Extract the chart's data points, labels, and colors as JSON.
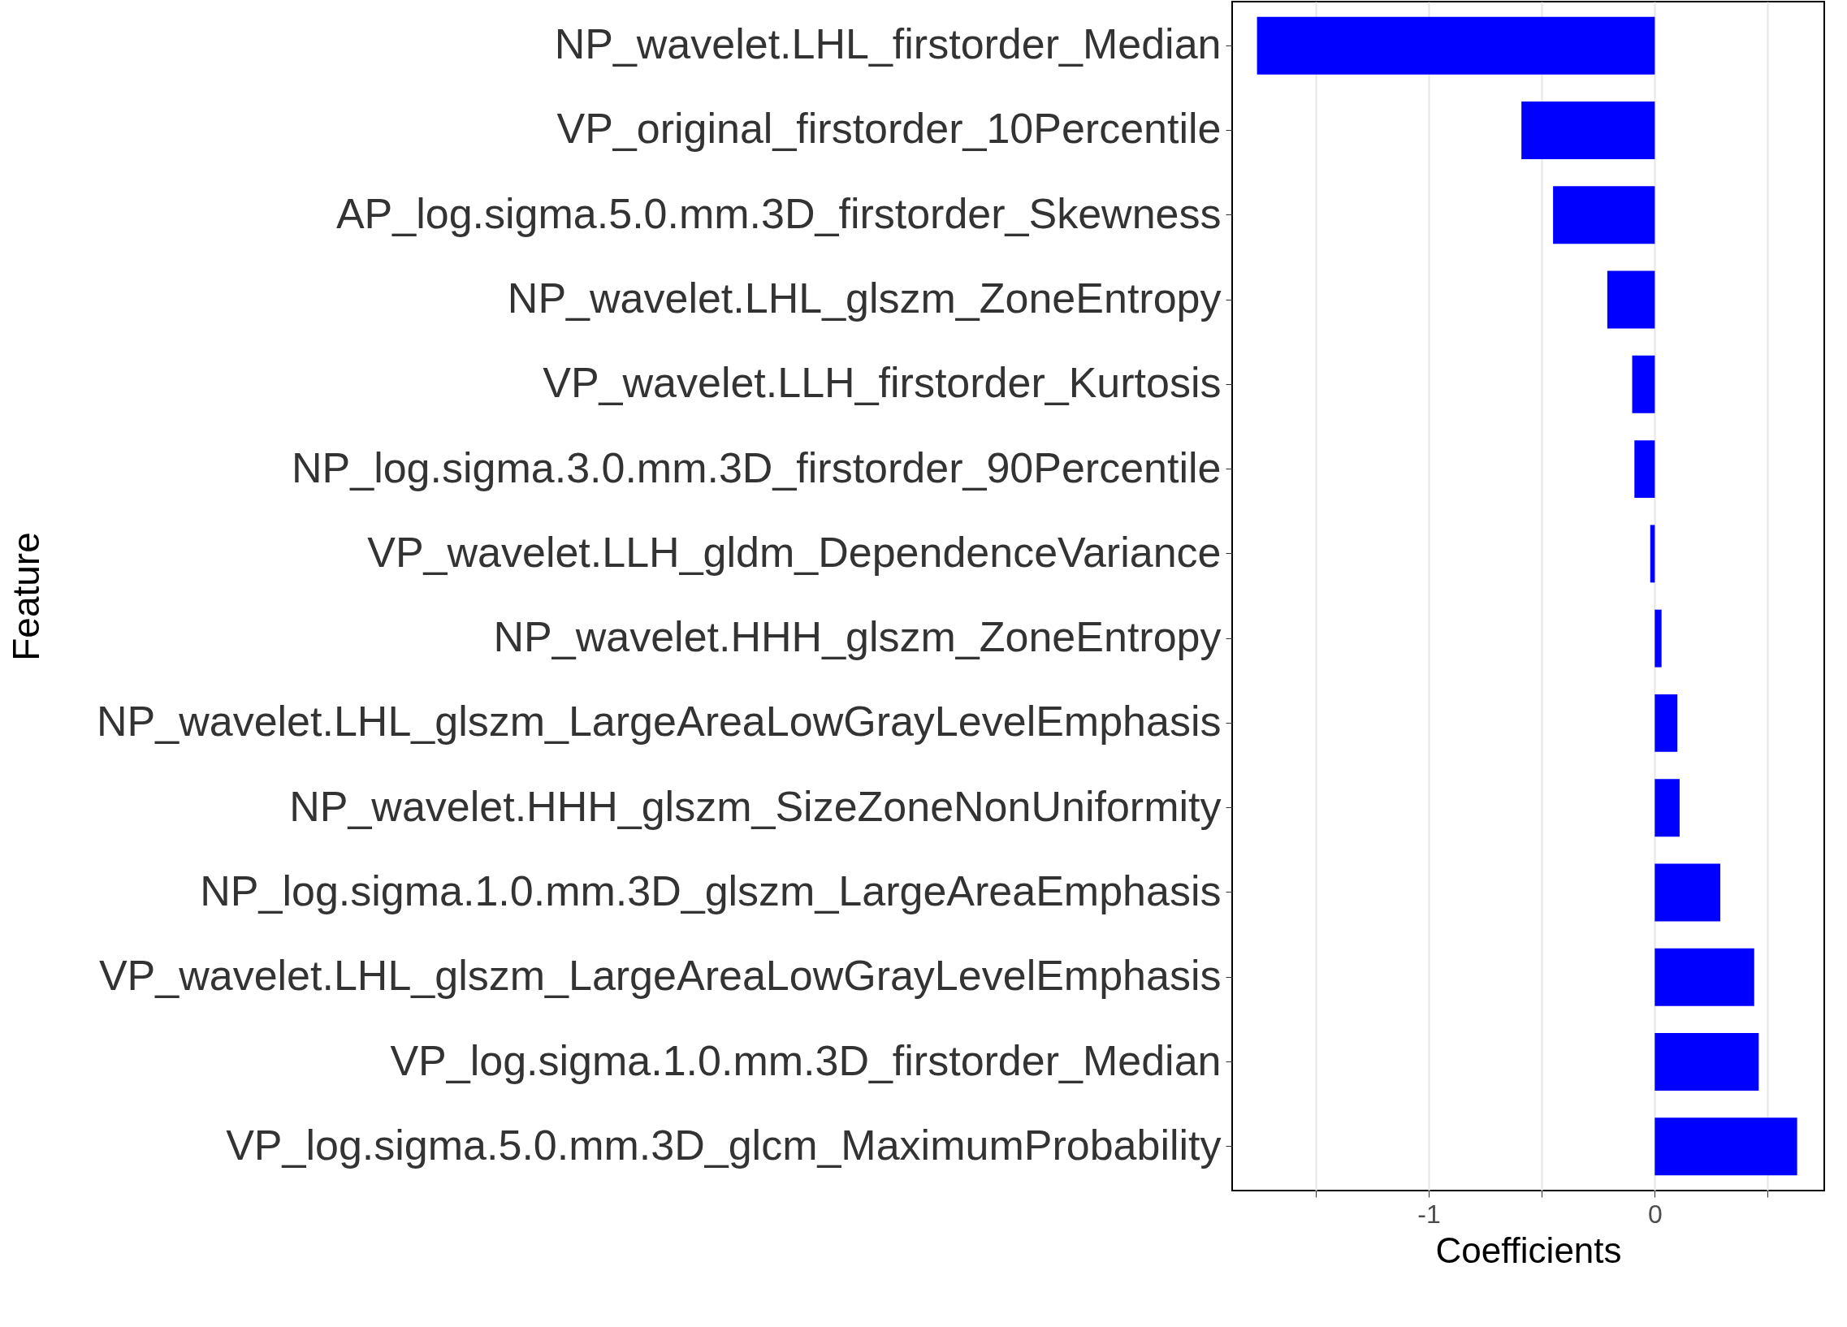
{
  "chart_data": {
    "type": "bar",
    "orientation": "horizontal",
    "xlabel": "Coefficients",
    "ylabel": "Feature",
    "categories": [
      "NP_wavelet.LHL_firstorder_Median",
      "VP_original_firstorder_10Percentile",
      "AP_log.sigma.5.0.mm.3D_firstorder_Skewness",
      "NP_wavelet.LHL_glszm_ZoneEntropy",
      "VP_wavelet.LLH_firstorder_Kurtosis",
      "NP_log.sigma.3.0.mm.3D_firstorder_90Percentile",
      "VP_wavelet.LLH_gldm_DependenceVariance",
      "NP_wavelet.HHH_glszm_ZoneEntropy",
      "NP_wavelet.LHL_glszm_LargeAreaLowGrayLevelEmphasis",
      "NP_wavelet.HHH_glszm_SizeZoneNonUniformity",
      "NP_log.sigma.1.0.mm.3D_glszm_LargeAreaEmphasis",
      "VP_wavelet.LHL_glszm_LargeAreaLowGrayLevelEmphasis",
      "VP_log.sigma.1.0.mm.3D_firstorder_Median",
      "VP_log.sigma.5.0.mm.3D_glcm_MaximumProbability"
    ],
    "values": [
      -1.76,
      -0.59,
      -0.45,
      -0.21,
      -0.1,
      -0.09,
      -0.02,
      0.03,
      0.1,
      0.11,
      0.29,
      0.44,
      0.46,
      0.63
    ],
    "color": "#0000ff",
    "xlim": [
      -1.87,
      0.75
    ],
    "xticks": [
      {
        "value": -1.5,
        "label": null
      },
      -1,
      {
        "value": -0.5,
        "label": null
      },
      0,
      {
        "value": 0.5,
        "label": null
      }
    ],
    "grid": "x"
  }
}
